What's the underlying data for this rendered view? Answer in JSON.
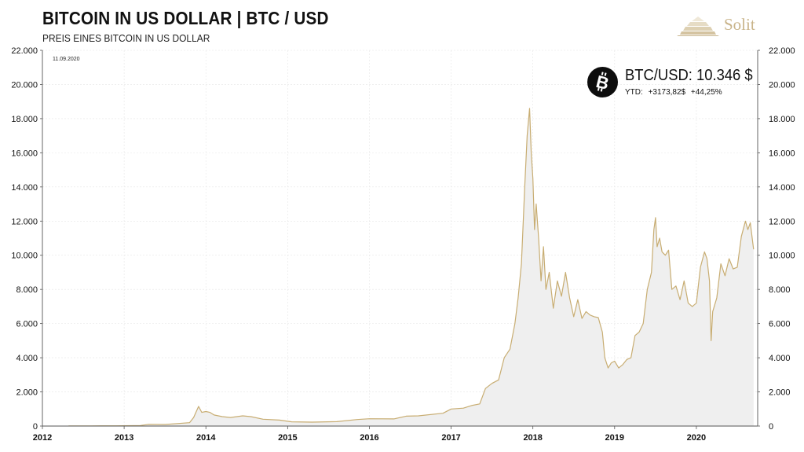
{
  "header": {
    "title": "BITCOIN IN US DOLLAR | BTC / USD",
    "subtitle": "PREIS EINES BITCOIN IN US DOLLAR",
    "date": "11.09.2020",
    "logo_text": "Solit"
  },
  "price_box": {
    "label": "BTC/USD: 10.346 $",
    "ytd_label": "YTD:",
    "ytd_abs": "+3173,82$",
    "ytd_pct": "+44,25%",
    "icon": "bitcoin-icon"
  },
  "colors": {
    "line": "#c8ad72",
    "area": "#efefef",
    "grid": "#e6e6e6"
  },
  "chart_data": {
    "type": "area",
    "title": "BITCOIN IN US DOLLAR | BTC / USD",
    "subtitle": "PREIS EINES BITCOIN IN US DOLLAR",
    "xlabel": "",
    "ylabel": "",
    "grid": true,
    "legend": "none",
    "xlim": [
      2012,
      2020.75
    ],
    "ylim": [
      0,
      22000
    ],
    "x_ticks": [
      "2012",
      "2013",
      "2014",
      "2015",
      "2016",
      "2017",
      "2018",
      "2019",
      "2020"
    ],
    "y_ticks": [
      "0",
      "2.000",
      "4.000",
      "6.000",
      "8.000",
      "10.000",
      "12.000",
      "14.000",
      "16.000",
      "18.000",
      "20.000",
      "22.000"
    ],
    "series": [
      {
        "x": [
          2012.32,
          2012.6,
          2012.9,
          2013.2,
          2013.3,
          2013.5,
          2013.8,
          2013.85,
          2013.91,
          2013.95,
          2014.0,
          2014.05,
          2014.1,
          2014.2,
          2014.3,
          2014.45,
          2014.55,
          2014.7,
          2014.9,
          2015.05,
          2015.3,
          2015.6,
          2015.85,
          2016.0,
          2016.3,
          2016.45,
          2016.6,
          2016.9,
          2017.0,
          2017.15,
          2017.25,
          2017.35,
          2017.42,
          2017.5,
          2017.58,
          2017.65,
          2017.72,
          2017.78,
          2017.82,
          2017.86,
          2017.9,
          2017.93,
          2017.96,
          2017.98,
          2018.0,
          2018.02,
          2018.04,
          2018.07,
          2018.1,
          2018.13,
          2018.16,
          2018.2,
          2018.25,
          2018.3,
          2018.35,
          2018.4,
          2018.45,
          2018.5,
          2018.55,
          2018.6,
          2018.65,
          2018.7,
          2018.75,
          2018.8,
          2018.85,
          2018.88,
          2018.92,
          2018.96,
          2019.0,
          2019.05,
          2019.1,
          2019.15,
          2019.2,
          2019.25,
          2019.3,
          2019.35,
          2019.4,
          2019.45,
          2019.48,
          2019.5,
          2019.52,
          2019.55,
          2019.58,
          2019.62,
          2019.66,
          2019.7,
          2019.75,
          2019.8,
          2019.85,
          2019.9,
          2019.95,
          2020.0,
          2020.05,
          2020.1,
          2020.13,
          2020.16,
          2020.18,
          2020.2,
          2020.25,
          2020.3,
          2020.35,
          2020.4,
          2020.45,
          2020.5,
          2020.55,
          2020.6,
          2020.63,
          2020.66,
          2020.7
        ],
        "y": [
          5,
          10,
          13,
          30,
          100,
          90,
          200,
          500,
          1150,
          800,
          850,
          800,
          650,
          550,
          500,
          600,
          550,
          400,
          350,
          250,
          230,
          260,
          380,
          430,
          420,
          580,
          600,
          750,
          1000,
          1050,
          1200,
          1300,
          2200,
          2500,
          2700,
          4000,
          4500,
          6000,
          7500,
          9500,
          14000,
          17000,
          18600,
          16000,
          14500,
          11500,
          13000,
          11000,
          8500,
          10500,
          8000,
          9000,
          6900,
          8500,
          7600,
          9000,
          7500,
          6400,
          7400,
          6300,
          6700,
          6500,
          6400,
          6350,
          5500,
          4000,
          3400,
          3700,
          3800,
          3400,
          3600,
          3900,
          4000,
          5300,
          5500,
          6000,
          8000,
          9000,
          11500,
          12200,
          10500,
          11000,
          10200,
          10000,
          10300,
          8000,
          8200,
          7400,
          8500,
          7200,
          7000,
          7200,
          9300,
          10200,
          9800,
          8500,
          5000,
          6700,
          7500,
          9500,
          8800,
          9800,
          9200,
          9300,
          11100,
          12000,
          11500,
          11900,
          10346
        ]
      }
    ]
  }
}
